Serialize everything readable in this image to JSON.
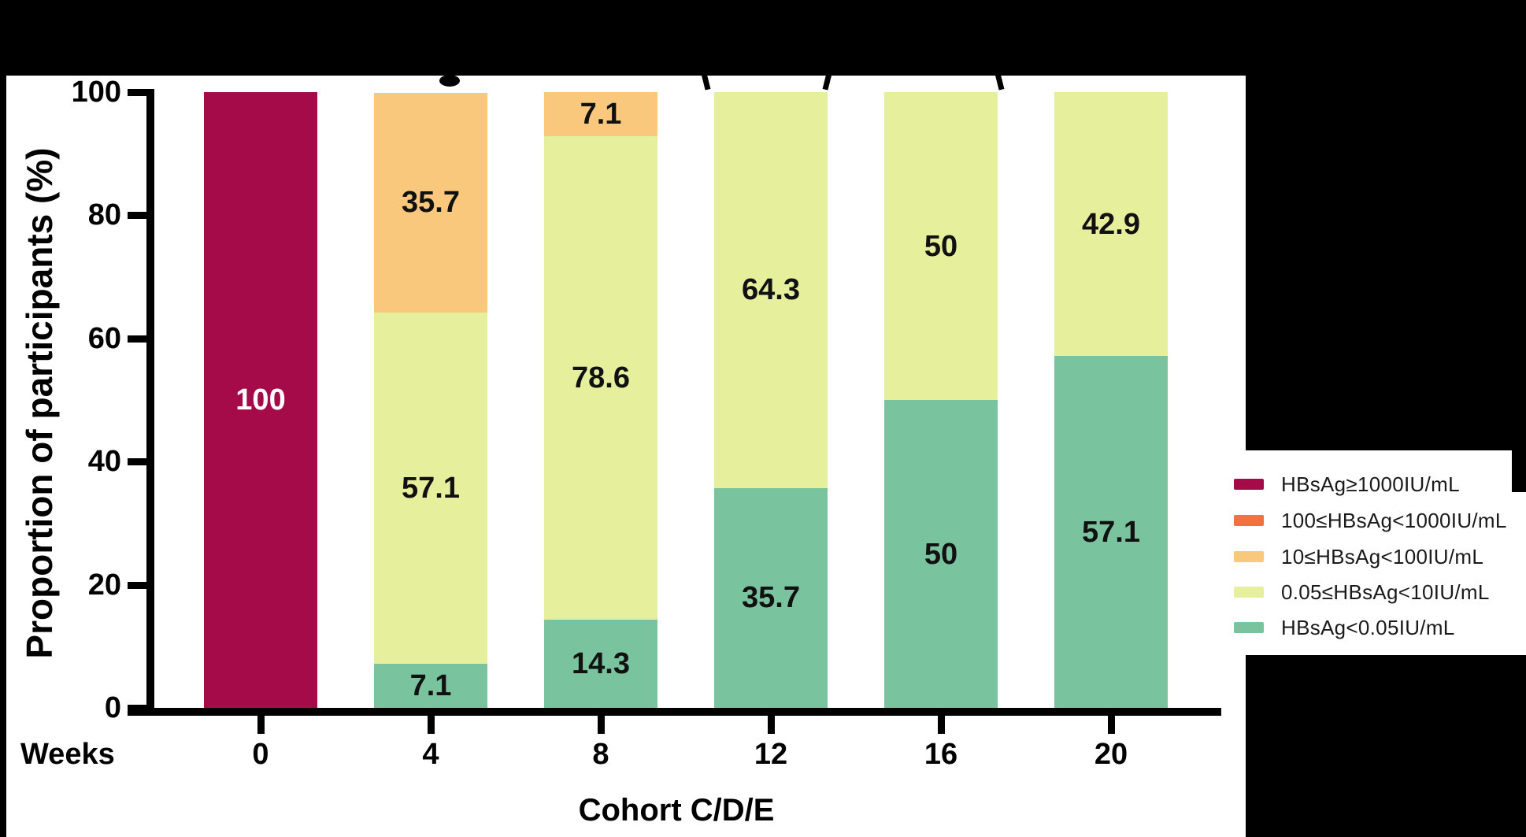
{
  "page": {
    "background_color": "#000000",
    "panel_color": "#FFFFFF"
  },
  "chart_data": {
    "type": "bar",
    "stacked": true,
    "x_axis_prefix": "Weeks",
    "categories": [
      "0",
      "4",
      "8",
      "12",
      "16",
      "20"
    ],
    "xlabel": "Cohort C/D/E",
    "ylabel": "Proportion of participants (%)",
    "ylim": [
      0,
      100
    ],
    "yticks": [
      0,
      20,
      40,
      60,
      80,
      100
    ],
    "legend_position": "right",
    "series": [
      {
        "name": "HBsAg<0.05IU/mL",
        "color": "#79C49F",
        "label_color": "#111111",
        "values": [
          0,
          7.1,
          14.3,
          35.7,
          50,
          57.1
        ]
      },
      {
        "name": "0.05≤HBsAg<10IU/mL",
        "color": "#E6EF9C",
        "label_color": "#111111",
        "values": [
          0,
          57.1,
          78.6,
          64.3,
          50,
          42.9
        ]
      },
      {
        "name": "10≤HBsAg<100IU/mL",
        "color": "#FAC87C",
        "label_color": "#111111",
        "values": [
          0,
          35.7,
          7.1,
          0,
          0,
          0
        ]
      },
      {
        "name": "100≤HBsAg<1000IU/mL",
        "color": "#F2713E",
        "label_color": "#111111",
        "values": [
          0,
          0,
          0,
          0,
          0,
          0
        ]
      },
      {
        "name": "HBsAg≥1000IU/mL",
        "color": "#A50B49",
        "label_color": "#FFFFFF",
        "values": [
          100,
          0,
          0,
          0,
          0,
          0
        ]
      }
    ]
  }
}
